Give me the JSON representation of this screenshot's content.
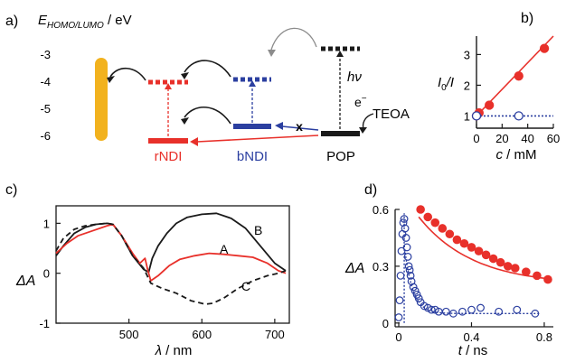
{
  "panel_a": {
    "label": "a)",
    "axis_label_main": "E",
    "axis_label_sub": "HOMO/LUMO",
    "axis_label_unit": " / eV",
    "ticks": [
      "-3",
      "-4",
      "-5",
      "-6"
    ],
    "species": {
      "rndi": "rNDI",
      "bndi": "bNDI",
      "pop": "POP"
    },
    "hv": "hν",
    "electron": "e",
    "electron_sup": "−",
    "teoa": "TEOA",
    "blocked_mark": "x",
    "colors": {
      "rndi": "#e8302a",
      "bndi": "#2b3fa0",
      "pop": "#1a1a1a",
      "gold": "#f2b21e"
    }
  },
  "chart_data": [
    {
      "panel": "b)",
      "type": "scatter",
      "ylabel_main": "I",
      "ylabel_sub": "0",
      "ylabel_tail": "/I",
      "xlabel_main": "c",
      "xlabel_unit": " / mM",
      "xlim": [
        0,
        60
      ],
      "ylim": [
        0.6,
        3.6
      ],
      "xticks": [
        0,
        20,
        40,
        60
      ],
      "yticks": [
        1,
        2,
        3
      ],
      "series": [
        {
          "color": "#e8302a",
          "marker": "filled-circle",
          "x": [
            0,
            2,
            10,
            33,
            53
          ],
          "y": [
            1.0,
            1.1,
            1.35,
            2.3,
            3.2
          ],
          "fit": [
            [
              0,
              1.0
            ],
            [
              60,
              3.6
            ]
          ]
        },
        {
          "color": "#2b3fa0",
          "marker": "open-circle",
          "x": [
            0,
            33
          ],
          "y": [
            1.0,
            1.0
          ],
          "fit": [
            [
              0,
              1.0
            ],
            [
              60,
              1.0
            ]
          ]
        }
      ]
    },
    {
      "panel": "c)",
      "type": "line",
      "ylabel_main": "ΔA",
      "xlabel_main": "λ",
      "xlabel_unit": " / nm",
      "xlim": [
        400,
        720
      ],
      "ylim": [
        -1,
        1.35
      ],
      "xticks": [
        500,
        600,
        700
      ],
      "yticks": [
        1,
        0,
        -1
      ],
      "series": [
        {
          "name": "B",
          "color": "#1a1a1a",
          "style": "solid",
          "x": [
            400,
            410,
            425,
            440,
            455,
            470,
            478,
            490,
            505,
            520,
            527,
            532,
            540,
            552,
            565,
            580,
            600,
            620,
            640,
            660,
            680,
            700,
            715
          ],
          "y": [
            0.35,
            0.55,
            0.8,
            0.92,
            0.98,
            1.0,
            0.98,
            0.75,
            0.35,
            0.08,
            0.02,
            0.3,
            0.55,
            0.8,
            1.0,
            1.12,
            1.18,
            1.2,
            1.1,
            0.9,
            0.55,
            0.2,
            0.05
          ]
        },
        {
          "name": "A",
          "color": "#e8302a",
          "style": "solid",
          "x": [
            400,
            415,
            430,
            450,
            470,
            478,
            490,
            505,
            515,
            522,
            526,
            530,
            540,
            555,
            570,
            590,
            610,
            630,
            650,
            670,
            690,
            705,
            715
          ],
          "y": [
            0.4,
            0.6,
            0.75,
            0.85,
            0.95,
            0.98,
            0.75,
            0.4,
            0.2,
            0.3,
            0.05,
            -0.15,
            -0.05,
            0.15,
            0.28,
            0.35,
            0.4,
            0.38,
            0.35,
            0.32,
            0.2,
            0.05,
            0.0
          ]
        },
        {
          "name": "C",
          "color": "#1a1a1a",
          "style": "dashed",
          "x": [
            400,
            410,
            425,
            440,
            455,
            470,
            478,
            490,
            505,
            520,
            530,
            545,
            565,
            585,
            605,
            615,
            630,
            650,
            670,
            690,
            705,
            715
          ],
          "y": [
            0.45,
            0.7,
            0.88,
            0.95,
            0.98,
            1.0,
            0.98,
            0.75,
            0.35,
            0.1,
            -0.2,
            -0.3,
            -0.4,
            -0.55,
            -0.62,
            -0.6,
            -0.5,
            -0.3,
            -0.15,
            -0.05,
            0.0,
            0.05
          ]
        }
      ]
    },
    {
      "panel": "d)",
      "type": "scatter",
      "ylabel_main": "ΔA",
      "xlabel_main": "t",
      "xlabel_unit": " / ns",
      "xlim": [
        -0.02,
        0.85
      ],
      "ylim": [
        -0.02,
        0.6
      ],
      "xticks": [
        "0",
        "0.4",
        "0.8"
      ],
      "xtick_values": [
        0,
        0.4,
        0.8
      ],
      "yticks": [
        "0",
        "0.3",
        "0.6"
      ],
      "ytick_values": [
        0,
        0.3,
        0.6
      ],
      "series": [
        {
          "color": "#e8302a",
          "marker": "filled-circle",
          "x": [
            0.12,
            0.16,
            0.2,
            0.24,
            0.28,
            0.32,
            0.36,
            0.4,
            0.44,
            0.48,
            0.52,
            0.56,
            0.6,
            0.64,
            0.7,
            0.76,
            0.82
          ],
          "y": [
            0.6,
            0.56,
            0.53,
            0.5,
            0.47,
            0.44,
            0.42,
            0.4,
            0.38,
            0.36,
            0.34,
            0.32,
            0.3,
            0.29,
            0.27,
            0.25,
            0.23
          ],
          "fit": "exp"
        },
        {
          "color": "#2b3fa0",
          "marker": "open-circle",
          "x": [
            0.0,
            0.005,
            0.01,
            0.015,
            0.02,
            0.025,
            0.03,
            0.035,
            0.04,
            0.045,
            0.05,
            0.055,
            0.06,
            0.065,
            0.07,
            0.08,
            0.09,
            0.1,
            0.11,
            0.12,
            0.14,
            0.16,
            0.18,
            0.2,
            0.22,
            0.26,
            0.3,
            0.35,
            0.4,
            0.45,
            0.55,
            0.65,
            0.75
          ],
          "y": [
            0.03,
            0.12,
            0.25,
            0.38,
            0.47,
            0.53,
            0.55,
            0.5,
            0.45,
            0.4,
            0.35,
            0.3,
            0.28,
            0.25,
            0.22,
            0.19,
            0.17,
            0.15,
            0.13,
            0.11,
            0.09,
            0.08,
            0.07,
            0.07,
            0.06,
            0.06,
            0.05,
            0.06,
            0.07,
            0.08,
            0.06,
            0.07,
            0.05
          ],
          "fit": "exp-fast"
        }
      ]
    }
  ]
}
